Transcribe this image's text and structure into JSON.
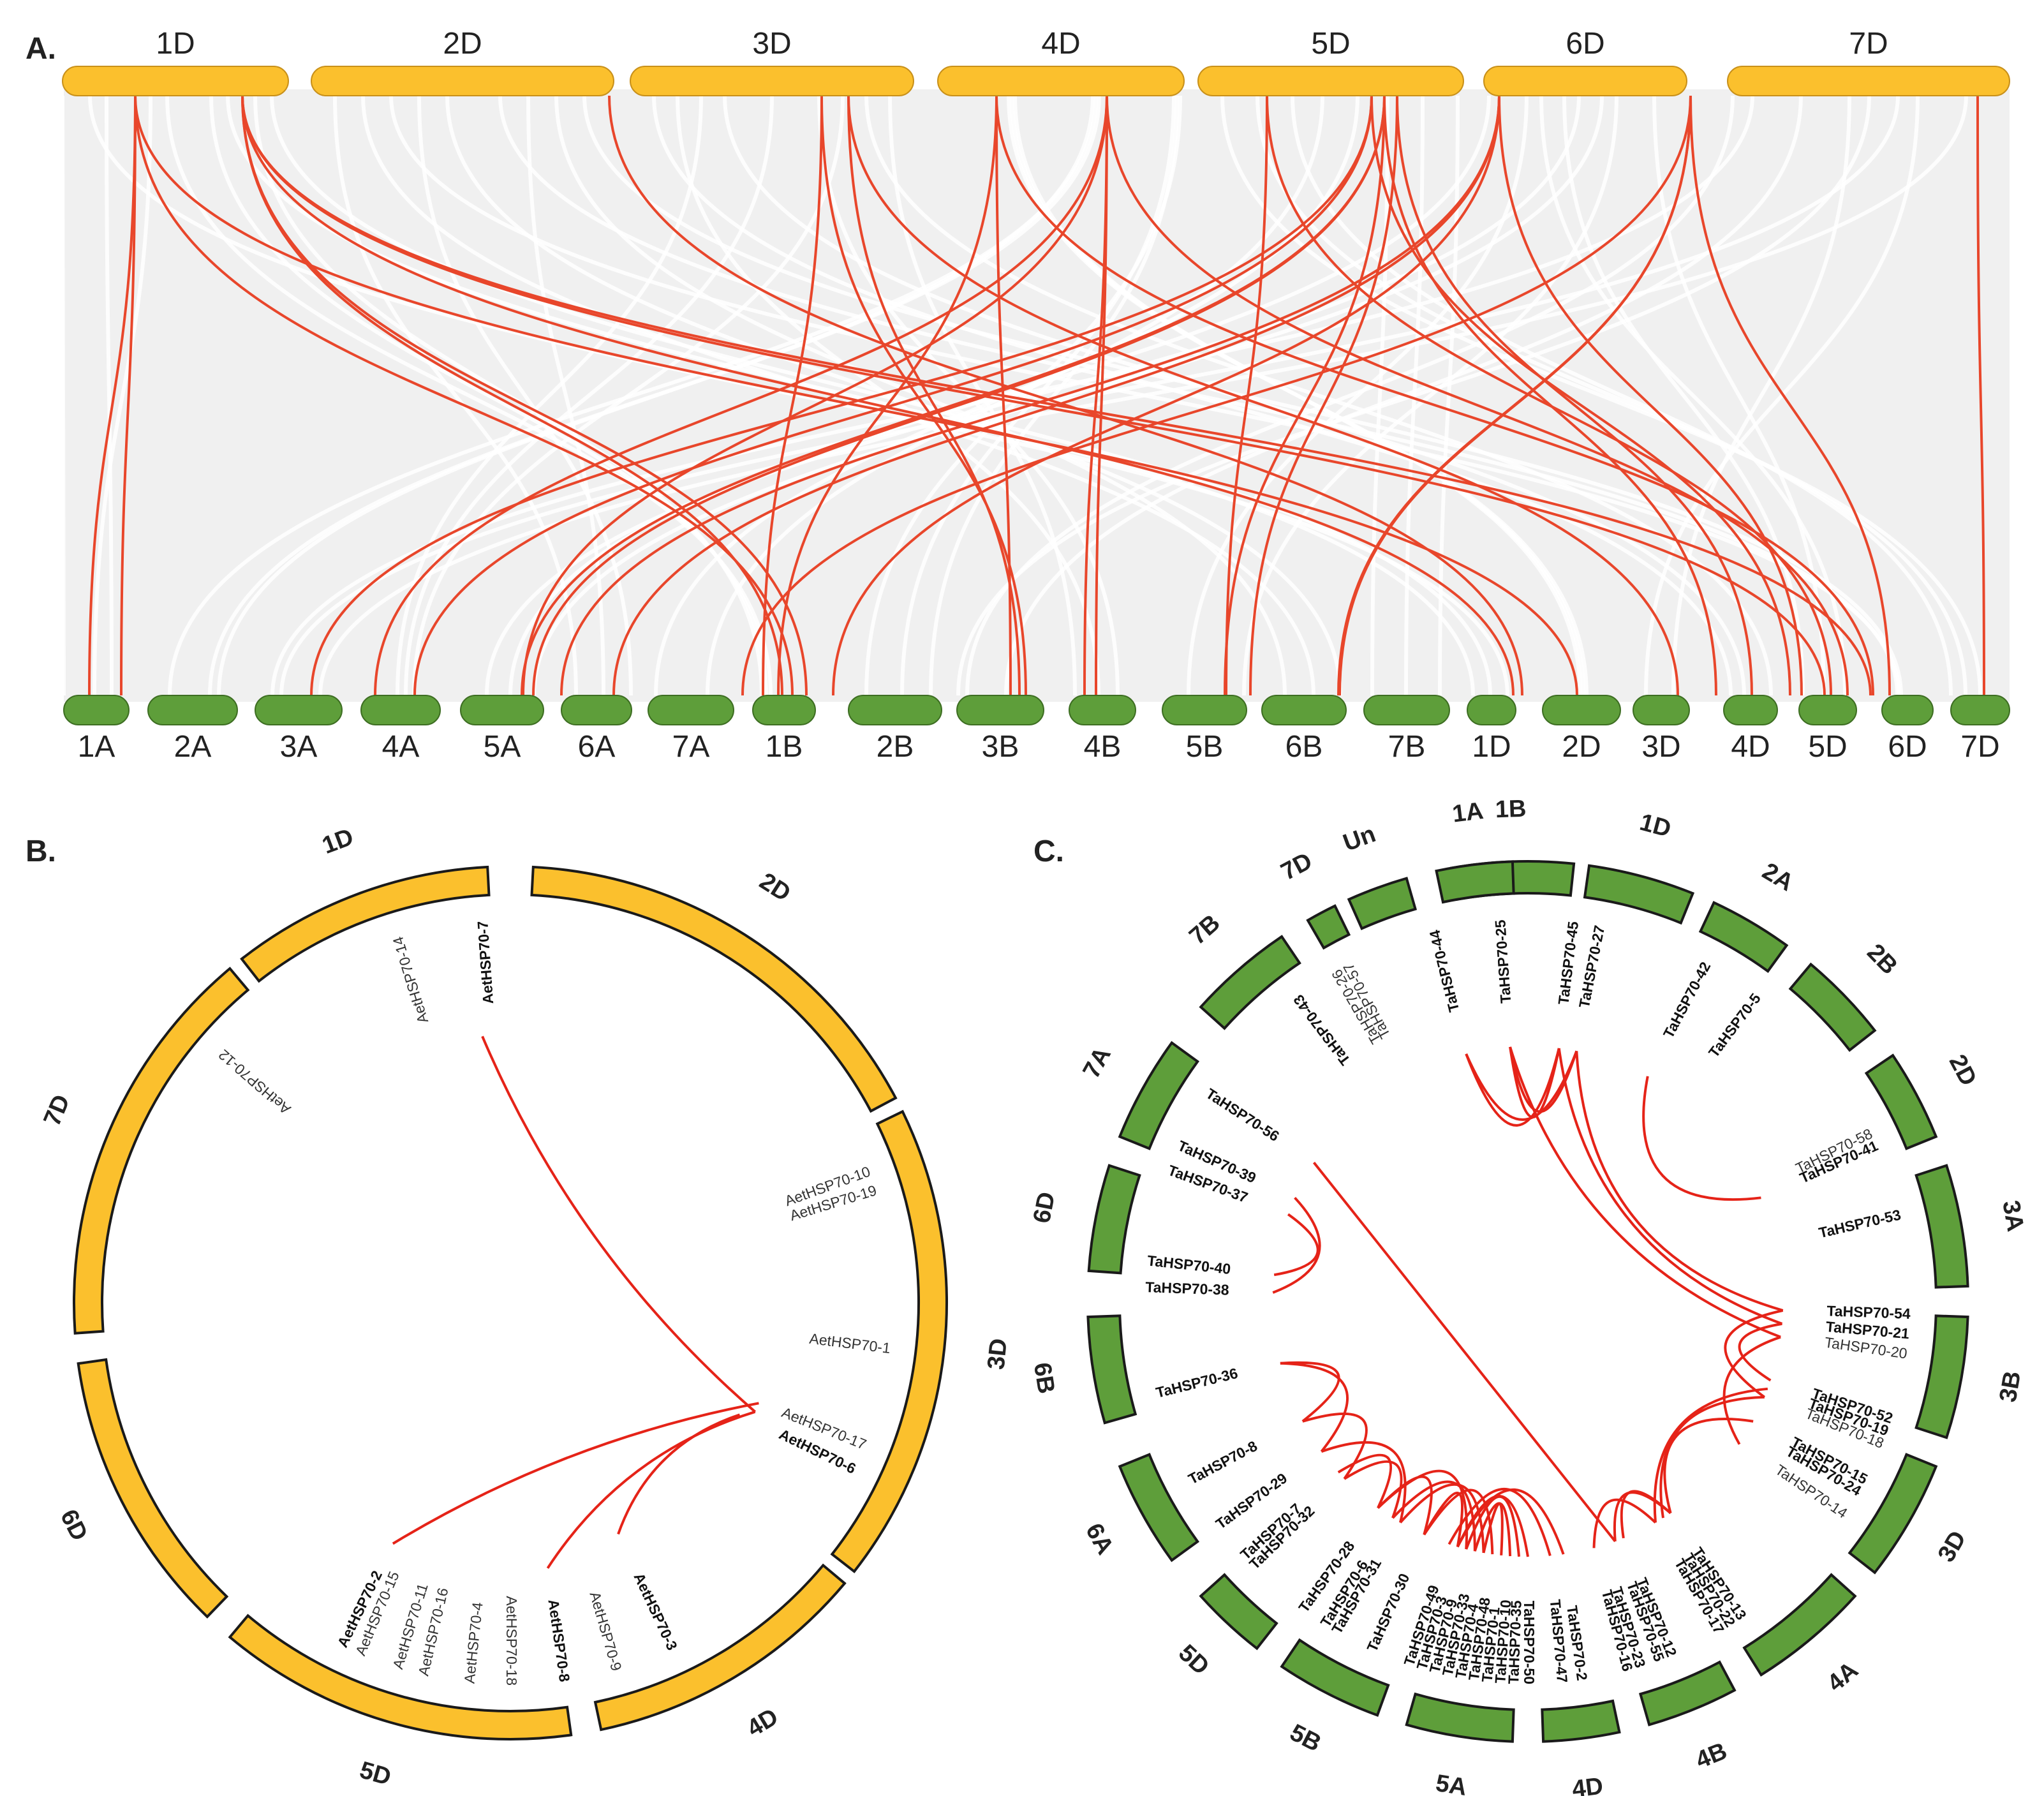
{
  "panelA": {
    "letter": "A.",
    "top": [
      {
        "label": "1D"
      },
      {
        "label": "2D"
      },
      {
        "label": "3D"
      },
      {
        "label": "4D"
      },
      {
        "label": "5D"
      },
      {
        "label": "6D"
      },
      {
        "label": "7D"
      }
    ],
    "bottom": [
      {
        "label": "1A"
      },
      {
        "label": "2A"
      },
      {
        "label": "3A"
      },
      {
        "label": "4A"
      },
      {
        "label": "5A"
      },
      {
        "label": "6A"
      },
      {
        "label": "7A"
      },
      {
        "label": "1B"
      },
      {
        "label": "2B"
      },
      {
        "label": "3B"
      },
      {
        "label": "4B"
      },
      {
        "label": "5B"
      },
      {
        "label": "6B"
      },
      {
        "label": "7B"
      },
      {
        "label": "1D"
      },
      {
        "label": "2D"
      },
      {
        "label": "3D"
      },
      {
        "label": "4D"
      },
      {
        "label": "5D"
      },
      {
        "label": "6D"
      },
      {
        "label": "7D"
      }
    ]
  },
  "panelB": {
    "letter": "B.",
    "chromosomes": [
      "1D",
      "2D",
      "3D",
      "4D",
      "5D",
      "6D",
      "7D"
    ],
    "genes": [
      "AetHSP70-14",
      "AetHSP70-7",
      "AetHSP70-12",
      "AetHSP70-10",
      "AetHSP70-19",
      "AetHSP70-1",
      "AetHSP70-17",
      "AetHSP70-6",
      "AetHSP70-9",
      "AetHSP70-4",
      "AetHSP70-16",
      "AetHSP70-11",
      "AetHSP70-15",
      "AetHSP70-2",
      "AetHSP70-18",
      "AetHSP70-8",
      "AetHSP70-3"
    ]
  },
  "panelC": {
    "letter": "C.",
    "chromosomes": [
      "1A",
      "1B",
      "1D",
      "2A",
      "2B",
      "2D",
      "3A",
      "3B",
      "3D",
      "4A",
      "4B",
      "4D",
      "5A",
      "5B",
      "5D",
      "6A",
      "6B",
      "6D",
      "7A",
      "7B",
      "7D",
      "Un"
    ],
    "genes": [
      "TaHSP70-43",
      "TaHSP70-26",
      "TaHSP70-57",
      "TaHSP70-44",
      "TaHSP70-25",
      "TaHSP70-45",
      "TaHSP70-27",
      "TaHSP70-42",
      "TaHSP70-5",
      "TaHSP70-58",
      "TaHSP70-41",
      "TaHSP70-53",
      "TaHSP70-54",
      "TaHSP70-21",
      "TaHSP70-20",
      "TaHSP70-52",
      "TaHSP70-19",
      "TaHSP70-18",
      "TaHSP70-15",
      "TaHSP70-24",
      "TaHSP70-14",
      "TaHSP70-13",
      "TaHSP70-22",
      "TaHSP70-17",
      "TaHSP70-12",
      "TaHSP70-55",
      "TaHSP70-23",
      "TaHSP70-16",
      "TaHSP70-2",
      "TaHSP70-47",
      "TaHSP70-50",
      "TaHSP70-35",
      "TaHSP70-10",
      "TaHSP70-1",
      "TaHSP70-48",
      "TaHSP70-4",
      "TaHSP70-33",
      "TaHSP70-9",
      "TaHSP70-3",
      "TaHSP70-49",
      "TaHSP70-30",
      "TaHSP70-31",
      "TaHSP70-6",
      "TaHSP70-28",
      "TaHSP70-32",
      "TaHSP70-7",
      "TaHSP70-29",
      "TaHSP70-8",
      "TaHSP70-36",
      "TaHSP70-38",
      "TaHSP70-40",
      "TaHSP70-37",
      "TaHSP70-39",
      "TaHSP70-56"
    ]
  },
  "colors": {
    "yellow": "#fbc02d",
    "green": "#5e9e3a",
    "link": "#e8462b",
    "panelBg": "#f0f0f0"
  }
}
